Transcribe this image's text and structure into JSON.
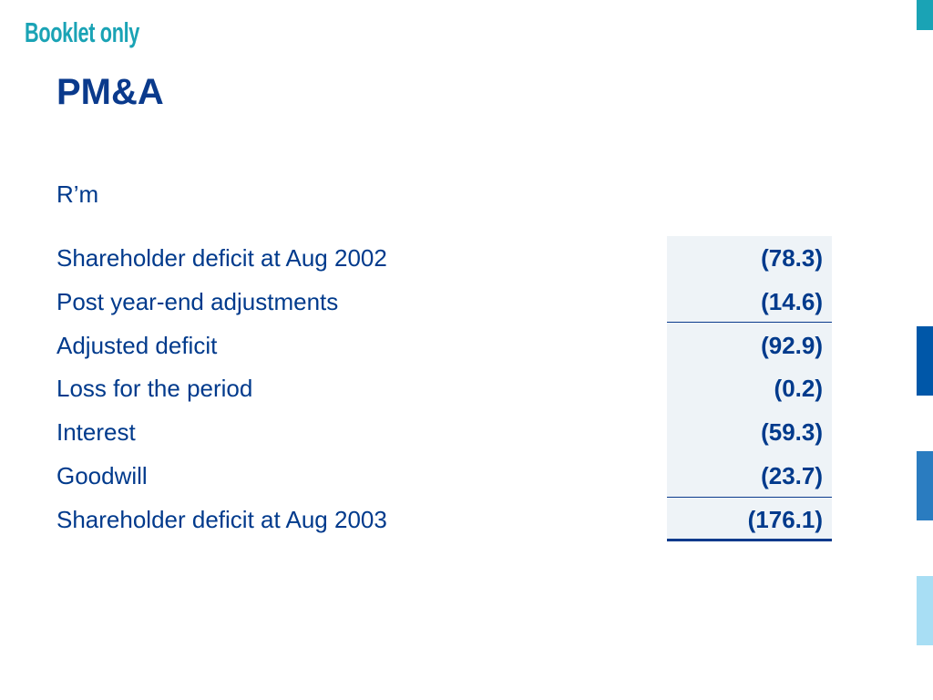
{
  "booklet_note": "Booklet only",
  "title": "PM&A",
  "unit": "R’m",
  "rows": [
    {
      "label": "Shareholder deficit at Aug 2002",
      "value": "(78.3)"
    },
    {
      "label": "Post year-end adjustments",
      "value": "(14.6)"
    },
    {
      "label": "Adjusted deficit",
      "value": "(92.9)"
    },
    {
      "label": "Loss for the period",
      "value": "(0.2)"
    },
    {
      "label": "Interest",
      "value": "(59.3)"
    },
    {
      "label": "Goodwill",
      "value": "(23.7)"
    },
    {
      "label": "Shareholder deficit at Aug 2003",
      "value": "(176.1)"
    }
  ],
  "colors": {
    "title": "#0a3a8c",
    "text": "#003a8c",
    "booklet_note": "#1aa3b5",
    "value_column_bg": "#eef3f7",
    "side_tabs": [
      "#1aa3b5",
      "#0057a8",
      "#2a7cc0",
      "#a8def4"
    ]
  }
}
